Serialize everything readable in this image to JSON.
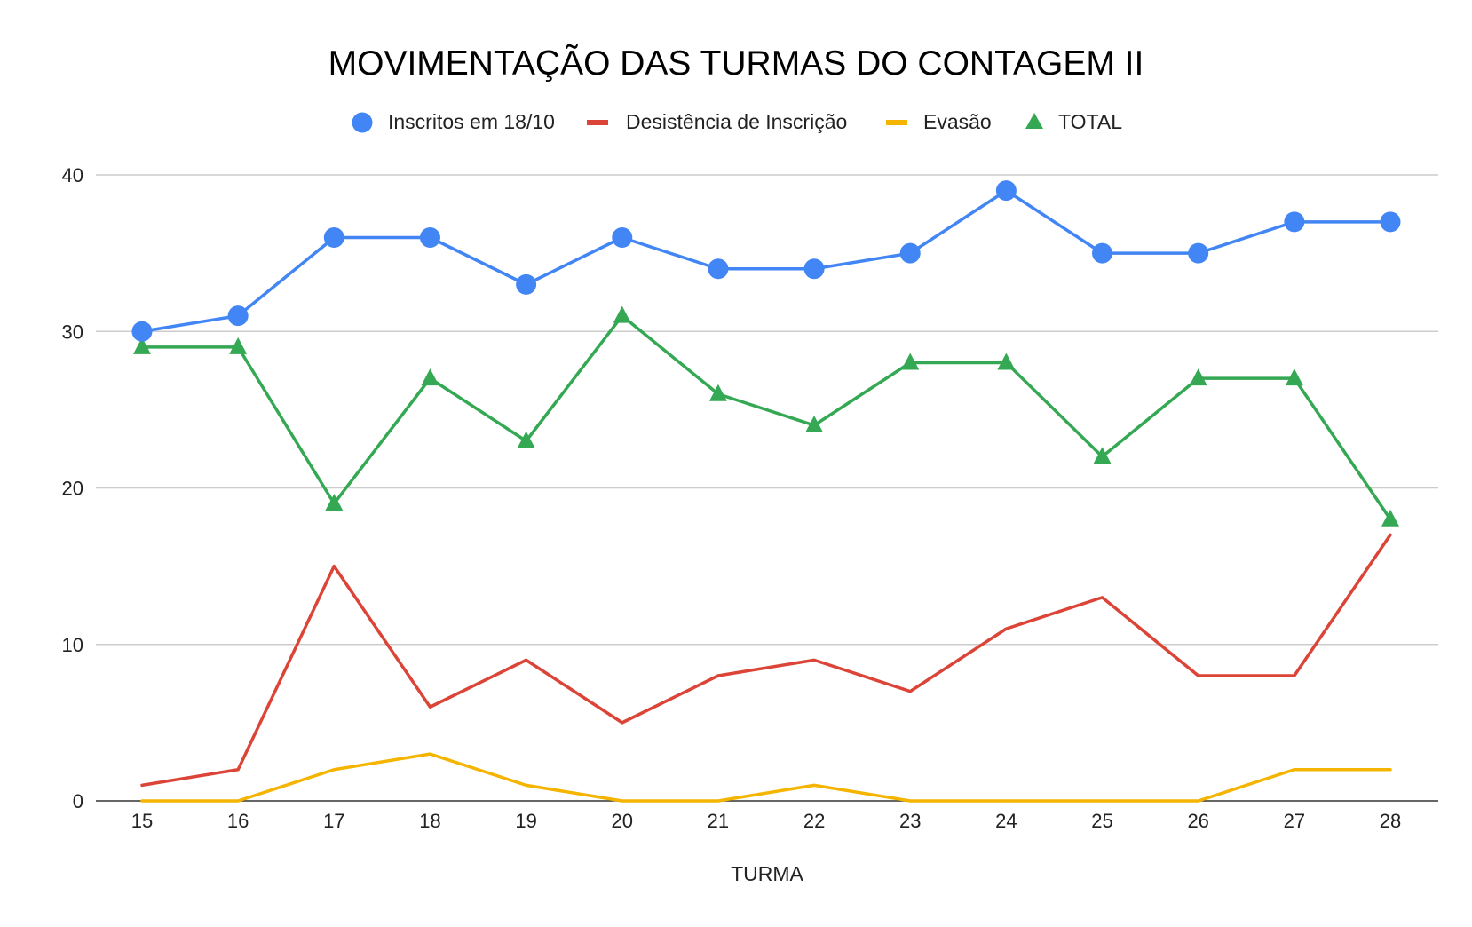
{
  "chart_data": {
    "type": "line",
    "title": "MOVIMENTAÇÃO DAS TURMAS DO CONTAGEM II",
    "xlabel": "TURMA",
    "ylabel": "",
    "categories": [
      "15",
      "16",
      "17",
      "18",
      "19",
      "20",
      "21",
      "22",
      "23",
      "24",
      "25",
      "26",
      "27",
      "28"
    ],
    "ylim": [
      0,
      40
    ],
    "yticks": [
      "0",
      "10",
      "20",
      "30",
      "40"
    ],
    "grid": true,
    "legend_position": "top",
    "series": [
      {
        "name": "Inscritos em 18/10",
        "color": "#4285F4",
        "marker": "circle",
        "values": [
          30,
          31,
          36,
          36,
          33,
          36,
          34,
          34,
          35,
          39,
          35,
          35,
          37,
          37
        ]
      },
      {
        "name": "Desistência de Inscrição",
        "color": "#DB4437",
        "marker": "none",
        "values": [
          1,
          2,
          15,
          6,
          9,
          5,
          8,
          9,
          7,
          11,
          13,
          8,
          8,
          17
        ]
      },
      {
        "name": "Evasão",
        "color": "#F4B400",
        "marker": "none",
        "values": [
          0,
          0,
          2,
          3,
          1,
          0,
          0,
          1,
          0,
          0,
          0,
          0,
          2,
          2
        ]
      },
      {
        "name": "TOTAL",
        "color": "#34A853",
        "marker": "triangle",
        "values": [
          29,
          29,
          19,
          27,
          23,
          31,
          26,
          24,
          28,
          28,
          22,
          27,
          27,
          18
        ]
      }
    ]
  }
}
